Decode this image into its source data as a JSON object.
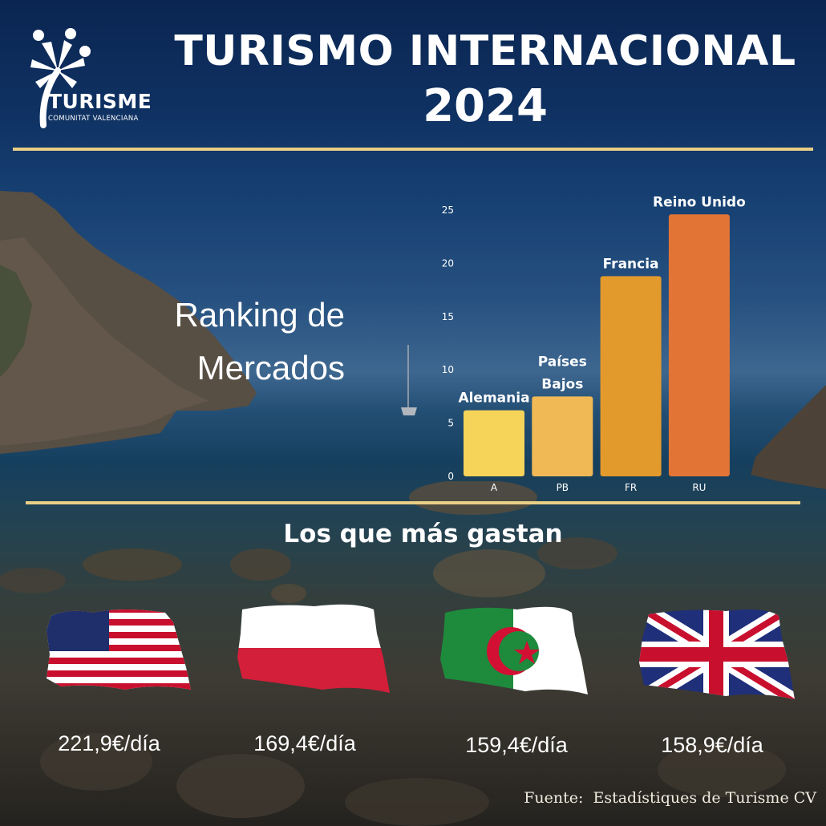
{
  "logo": {
    "name": "TURISME",
    "subtitle": "COMUNITAT VALENCIANA"
  },
  "title": {
    "line1": "TURISMO INTERNACIONAL",
    "line2": "2024"
  },
  "ranking_heading": {
    "line1": "Ranking de",
    "line2": "Mercados"
  },
  "chart_data": {
    "type": "bar",
    "categories": [
      "A",
      "PB",
      "FR",
      "RU"
    ],
    "bar_labels": [
      "Alemania",
      "Países Bajos",
      "Francia",
      "Reino Unido"
    ],
    "values": [
      6.2,
      7.5,
      18.8,
      24.6
    ],
    "ylim": [
      0,
      25
    ],
    "yticks": [
      "0",
      "5",
      "10",
      "15",
      "20",
      "25"
    ],
    "grid": false,
    "colors": [
      "#f6d45a",
      "#f0b955",
      "#e39a2c",
      "#e27535"
    ]
  },
  "spend": {
    "heading": "Los que más gastan",
    "items": [
      {
        "flag": "usa-flag",
        "value": "221,9€/día"
      },
      {
        "flag": "poland-flag",
        "value": "169,4€/día"
      },
      {
        "flag": "algeria-flag",
        "value": "159,4€/día"
      },
      {
        "flag": "uk-flag",
        "value": "158,9€/día"
      }
    ]
  },
  "source": "Fuente:  Estadístiques de Turisme CV",
  "colors": {
    "accent_rule": "#e9cf86",
    "text": "#ffffff"
  }
}
